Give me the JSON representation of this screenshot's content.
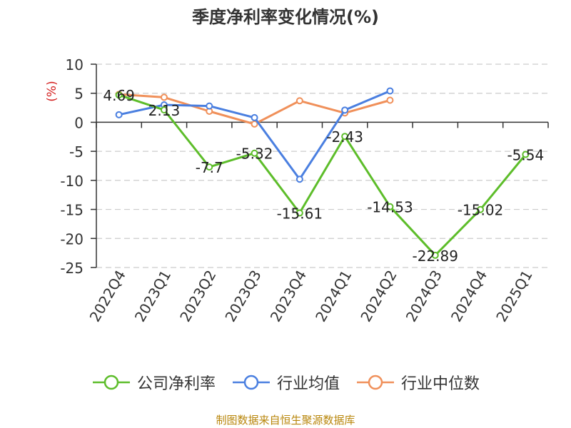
{
  "chart_data": {
    "type": "line",
    "title": "季度净利率变化情况(%)",
    "ylabel": "(%)",
    "xlabel": "",
    "categories": [
      "2022Q4",
      "2023Q1",
      "2023Q2",
      "2023Q3",
      "2023Q4",
      "2024Q1",
      "2024Q2",
      "2024Q3",
      "2024Q4",
      "2025Q1"
    ],
    "ylim": [
      -25,
      10
    ],
    "yticks": [
      10,
      5,
      0,
      -5,
      -10,
      -15,
      -20,
      -25
    ],
    "grid": true,
    "legend_position": "bottom",
    "series": [
      {
        "name": "公司净利率",
        "color": "#5dbd2a",
        "values": [
          4.69,
          2.13,
          -7.7,
          -5.32,
          -15.61,
          -2.43,
          -14.53,
          -22.89,
          -15.02,
          -5.54
        ],
        "labels": [
          "4.69",
          "2.13",
          "-7.7",
          "-5.32",
          "-15.61",
          "-2.43",
          "-14.53",
          "-22.89",
          "-15.02",
          "-5.54"
        ]
      },
      {
        "name": "行业均值",
        "color": "#4a7fe0",
        "values": [
          1.3,
          3.0,
          2.8,
          0.8,
          -9.8,
          2.1,
          5.4,
          null,
          null,
          null
        ]
      },
      {
        "name": "行业中位数",
        "color": "#f0905a",
        "values": [
          4.8,
          4.3,
          1.9,
          -0.3,
          3.7,
          1.6,
          3.8,
          null,
          null,
          null
        ]
      }
    ]
  },
  "footer": {
    "source": "制图数据来自恒生聚源数据库"
  }
}
